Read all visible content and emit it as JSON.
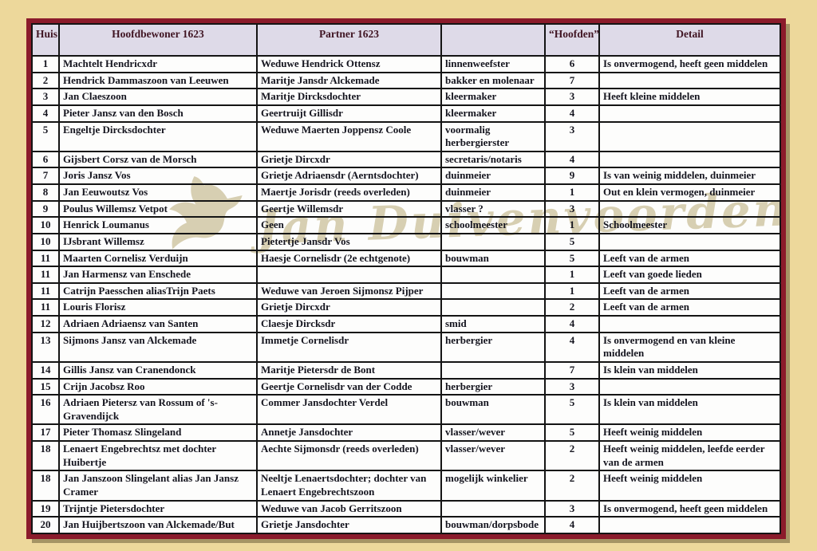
{
  "colors": {
    "page_bg": "#edd89b",
    "frame": "#8b1b2b",
    "header_bg": "#dedae8",
    "header_text": "#401523",
    "text": "#15151f",
    "grid": "#141414",
    "watermark": "#d6cdaf"
  },
  "watermark": {
    "text": "Jan Duivenvoorden",
    "icon": "dove"
  },
  "table": {
    "columns": [
      "Huis",
      "Hoofdbewoner 1623",
      "Partner 1623",
      "",
      "“Hoofden”",
      "Detail"
    ],
    "column_keys": [
      "huis",
      "hoofdbewoner",
      "partner",
      "beroep",
      "hoofden",
      "detail"
    ],
    "rows": [
      [
        "1",
        "Machtelt Hendricxdr",
        "Weduwe Hendrick Ottensz",
        "linnenweefster",
        "6",
        "Is onvermogend, heeft geen middelen"
      ],
      [
        "2",
        "Hendrick Dammaszoon van Leeuwen",
        "Maritje Jansdr Alckemade",
        "bakker en molenaar",
        "7",
        ""
      ],
      [
        "3",
        "Jan Claeszoon",
        "Maritje Dircksdochter",
        "kleermaker",
        "3",
        "Heeft kleine middelen"
      ],
      [
        "4",
        "Pieter Jansz van den Bosch",
        "Geertruijt Gillisdr",
        "kleermaker",
        "4",
        ""
      ],
      [
        "5",
        "Engeltje Dircksdochter",
        "Weduwe Maerten Joppensz Coole",
        "voormalig herbergierster",
        "3",
        ""
      ],
      [
        "6",
        "Gijsbert Corsz van de Morsch",
        "Grietje Dircxdr",
        "secretaris/notaris",
        "4",
        ""
      ],
      [
        "7",
        "Joris Jansz Vos",
        "Grietje Adriaensdr (Aerntsdochter)",
        "duinmeier",
        "9",
        "Is van weinig middelen, duinmeier"
      ],
      [
        "8",
        "Jan Eeuwoutsz Vos",
        "Maertje Jorisdr (reeds overleden)",
        "duinmeier",
        "1",
        "Out en klein vermogen, duinmeier"
      ],
      [
        "9",
        "Poulus Willemsz Vetpot",
        "Geertje Willemsdr",
        "vlasser ?",
        "3",
        ""
      ],
      [
        "10",
        "Henrick Loumanus",
        "Geen",
        "schoolmeester",
        "1",
        "Schoolmeester"
      ],
      [
        "10",
        "IJsbrant Willemsz",
        "Pietertje Jansdr Vos",
        "",
        "5",
        ""
      ],
      [
        "11",
        "Maarten Cornelisz Verduijn",
        "Haesje Cornelisdr (2e echtgenote)",
        "bouwman",
        "5",
        "Leeft van de armen"
      ],
      [
        "11",
        "Jan Harmensz van Enschede",
        "",
        "",
        "1",
        "Leeft van goede lieden"
      ],
      [
        "11",
        "Catrijn Paesschen aliasTrijn Paets",
        "Weduwe van Jeroen Sijmonsz Pijper",
        "",
        "1",
        "Leeft van de armen"
      ],
      [
        "11",
        "Louris Florisz",
        "Grietje Dircxdr",
        "",
        "2",
        "Leeft van de armen"
      ],
      [
        "12",
        "Adriaen Adriaensz van Santen",
        "Claesje Dircksdr",
        "smid",
        "4",
        ""
      ],
      [
        "13",
        "Sijmons Jansz van Alckemade",
        "Immetje Cornelisdr",
        "herbergier",
        "4",
        "Is onvermogend en van kleine middelen"
      ],
      [
        "14",
        "Gillis Jansz van Cranendonck",
        "Maritje Pietersdr de Bont",
        "",
        "7",
        "Is klein van middelen"
      ],
      [
        "15",
        "Crijn Jacobsz Roo",
        "Geertje Cornelisdr van der Codde",
        "herbergier",
        "3",
        ""
      ],
      [
        "16",
        "Adriaen Pietersz van Rossum of 's-Gravendijck",
        "Commer Jansdochter Verdel",
        "bouwman",
        "5",
        "Is klein van middelen"
      ],
      [
        "17",
        "Pieter Thomasz Slingeland",
        "Annetje Jansdochter",
        "vlasser/wever",
        "5",
        "Heeft weinig middelen"
      ],
      [
        "18",
        "Lenaert Engebrechtsz met dochter Huibertje",
        "Aechte Sijmonsdr (reeds overleden)",
        "vlasser/wever",
        "2",
        "Heeft weinig middelen, leefde eerder van de armen"
      ],
      [
        "18",
        "Jan Janszoon Slingelant alias Jan Jansz Cramer",
        "Neeltje Lenaertsdochter; dochter van Lenaert Engebrechtszoon",
        "mogelijk winkelier",
        "2",
        "Heeft weinig middelen"
      ],
      [
        "19",
        "Trijntje Pietersdochter",
        "Weduwe van Jacob Gerritszoon",
        "",
        "3",
        "Is onvermogend, heeft geen middelen"
      ],
      [
        "20",
        "Jan Huijbertszoon van Alckemade/But",
        "Grietje Jansdochter",
        "bouwman/dorpsbode",
        "4",
        ""
      ]
    ]
  }
}
